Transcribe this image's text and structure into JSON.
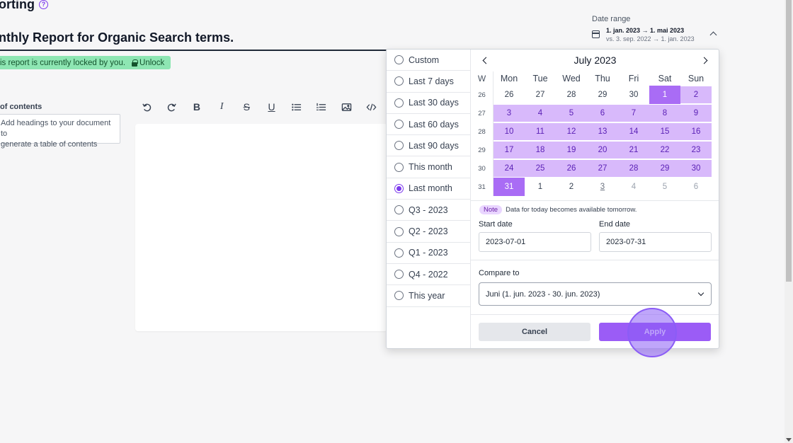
{
  "page": {
    "title": "orting",
    "report_title": "nthly Report for Organic Search terms.",
    "lock_text": "is report is currently locked by you.",
    "unlock_label": "Unlock"
  },
  "toc": {
    "title": "of contents",
    "line1": "Add headings to your document to",
    "line2": "generate a table of contents"
  },
  "toolbar": {
    "icons": [
      "undo-icon",
      "redo-icon",
      "bold-icon",
      "italic-icon",
      "strikethrough-icon",
      "underline-icon",
      "bullet-list-icon",
      "numbered-list-icon",
      "image-icon",
      "code-icon"
    ],
    "bold": "B",
    "italic": "I",
    "strike": "S",
    "underline": "U"
  },
  "date_range": {
    "label": "Date range",
    "main": "1. jan. 2023 → 1. mai 2023",
    "compare": "vs. 3. sep. 2022 → 1. jan. 2023"
  },
  "presets": [
    {
      "label": "Custom",
      "selected": false
    },
    {
      "label": "Last 7 days",
      "selected": false
    },
    {
      "label": "Last 30 days",
      "selected": false
    },
    {
      "label": "Last 60 days",
      "selected": false
    },
    {
      "label": "Last 90 days",
      "selected": false
    },
    {
      "label": "This month",
      "selected": false
    },
    {
      "label": "Last month",
      "selected": true
    },
    {
      "label": "Q3 - 2023",
      "selected": false
    },
    {
      "label": "Q2 - 2023",
      "selected": false
    },
    {
      "label": "Q1 - 2023",
      "selected": false
    },
    {
      "label": "Q4 - 2022",
      "selected": false
    },
    {
      "label": "This year",
      "selected": false
    }
  ],
  "calendar": {
    "month_label": "July 2023",
    "week_header": "W",
    "weekdays": [
      "Mon",
      "Tue",
      "Wed",
      "Thu",
      "Fri",
      "Sat",
      "Sun"
    ],
    "weeks": [
      {
        "num": "26",
        "days": [
          {
            "d": "26",
            "s": "in"
          },
          {
            "d": "27",
            "s": "in"
          },
          {
            "d": "28",
            "s": "in"
          },
          {
            "d": "29",
            "s": "in"
          },
          {
            "d": "30",
            "s": "in"
          },
          {
            "d": "1",
            "s": "endpt"
          },
          {
            "d": "2",
            "s": "range"
          }
        ]
      },
      {
        "num": "27",
        "days": [
          {
            "d": "3",
            "s": "range"
          },
          {
            "d": "4",
            "s": "range"
          },
          {
            "d": "5",
            "s": "range"
          },
          {
            "d": "6",
            "s": "range"
          },
          {
            "d": "7",
            "s": "range"
          },
          {
            "d": "8",
            "s": "range"
          },
          {
            "d": "9",
            "s": "range"
          }
        ]
      },
      {
        "num": "28",
        "days": [
          {
            "d": "10",
            "s": "range"
          },
          {
            "d": "11",
            "s": "range"
          },
          {
            "d": "12",
            "s": "range"
          },
          {
            "d": "13",
            "s": "range"
          },
          {
            "d": "14",
            "s": "range"
          },
          {
            "d": "15",
            "s": "range"
          },
          {
            "d": "16",
            "s": "range"
          }
        ]
      },
      {
        "num": "29",
        "days": [
          {
            "d": "17",
            "s": "range"
          },
          {
            "d": "18",
            "s": "range"
          },
          {
            "d": "19",
            "s": "range"
          },
          {
            "d": "20",
            "s": "range"
          },
          {
            "d": "21",
            "s": "range"
          },
          {
            "d": "22",
            "s": "range"
          },
          {
            "d": "23",
            "s": "range"
          }
        ]
      },
      {
        "num": "30",
        "days": [
          {
            "d": "24",
            "s": "range"
          },
          {
            "d": "25",
            "s": "range"
          },
          {
            "d": "26",
            "s": "range"
          },
          {
            "d": "27",
            "s": "range"
          },
          {
            "d": "28",
            "s": "range"
          },
          {
            "d": "29",
            "s": "range"
          },
          {
            "d": "30",
            "s": "range"
          }
        ]
      },
      {
        "num": "31",
        "days": [
          {
            "d": "31",
            "s": "endpt"
          },
          {
            "d": "1",
            "s": "in"
          },
          {
            "d": "2",
            "s": "in"
          },
          {
            "d": "3",
            "s": "today"
          },
          {
            "d": "4",
            "s": "out"
          },
          {
            "d": "5",
            "s": "out"
          },
          {
            "d": "6",
            "s": "out"
          }
        ]
      }
    ]
  },
  "note": {
    "badge": "Note",
    "text": "Data for today becomes available tomorrow."
  },
  "fields": {
    "start_label": "Start date",
    "start_value": "2023-07-01",
    "end_label": "End date",
    "end_value": "2023-07-31",
    "compare_label": "Compare to",
    "compare_value": "Juni (1. jun. 2023 - 30. jun. 2023)"
  },
  "actions": {
    "cancel": "Cancel",
    "apply": "Apply"
  },
  "colors": {
    "accent": "#7c3aed",
    "range": "#d8b9fb",
    "endpoint": "#a96cf5",
    "banner": "#8ee6b3"
  }
}
